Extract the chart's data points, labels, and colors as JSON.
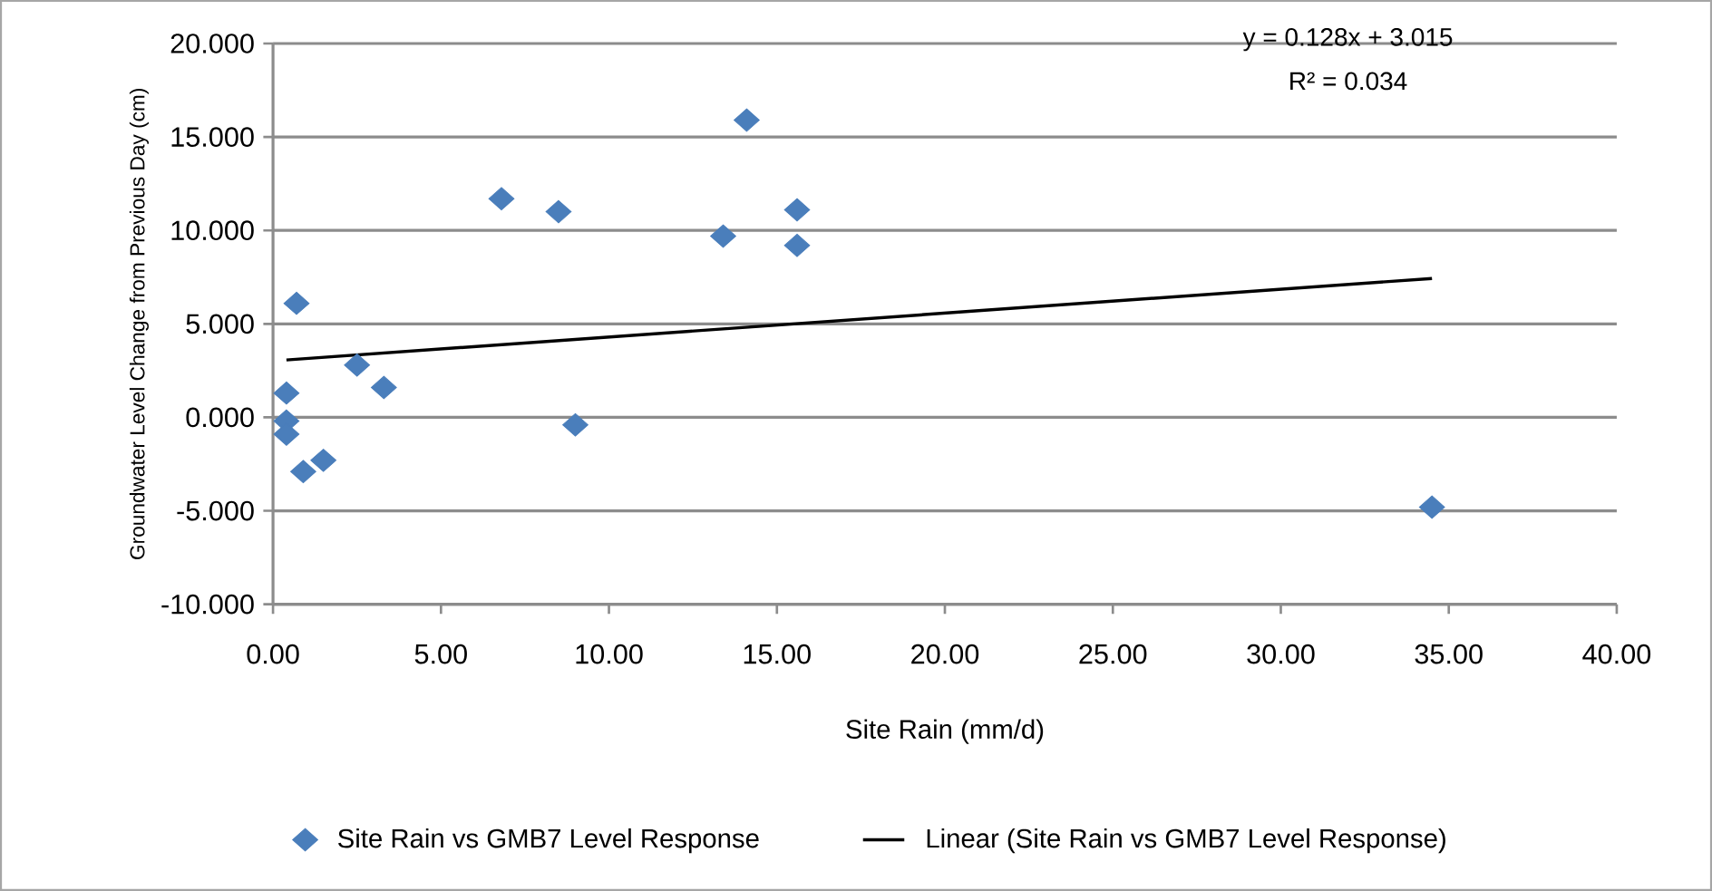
{
  "chart_data": {
    "type": "scatter",
    "xlabel": "Site Rain  (mm/d)",
    "ylabel": "Groundwater Level Change from Previous Day (cm)",
    "xlim": [
      0,
      40
    ],
    "ylim": [
      -10,
      20
    ],
    "xticks": [
      {
        "value": 0,
        "label": "0.00"
      },
      {
        "value": 5,
        "label": "5.00"
      },
      {
        "value": 10,
        "label": "10.00"
      },
      {
        "value": 15,
        "label": "15.00"
      },
      {
        "value": 20,
        "label": "20.00"
      },
      {
        "value": 25,
        "label": "25.00"
      },
      {
        "value": 30,
        "label": "30.00"
      },
      {
        "value": 35,
        "label": "35.00"
      },
      {
        "value": 40,
        "label": "40.00"
      }
    ],
    "yticks": [
      {
        "value": -10,
        "label": "-10.000"
      },
      {
        "value": -5,
        "label": "-5.000"
      },
      {
        "value": 0,
        "label": "0.000"
      },
      {
        "value": 5,
        "label": "5.000"
      },
      {
        "value": 10,
        "label": "10.000"
      },
      {
        "value": 15,
        "label": "15.000"
      },
      {
        "value": 20,
        "label": "20.000"
      }
    ],
    "grid": "y",
    "legend": "bottom",
    "annotations": [
      "y = 0.128x + 3.015",
      "R² = 0.034"
    ],
    "series": [
      {
        "name": "Site Rain vs GMB7 Level  Response",
        "marker": "diamond",
        "color": "#4a7ebb",
        "x": [
          0.7,
          0.4,
          0.4,
          0.4,
          0.9,
          1.5,
          2.5,
          3.3,
          6.8,
          8.5,
          9.0,
          13.4,
          14.1,
          15.6,
          15.6,
          34.5
        ],
        "values": [
          6.1,
          1.3,
          -0.2,
          -0.9,
          -2.9,
          -2.3,
          2.8,
          1.6,
          11.7,
          11.0,
          -0.4,
          9.7,
          15.9,
          11.1,
          9.2,
          -4.8
        ]
      },
      {
        "name": "Linear (Site Rain vs GMB7 Level  Response)",
        "type": "line",
        "marker": "none",
        "color": "#000000",
        "x": [
          0.4,
          34.5
        ],
        "values": [
          3.07,
          7.43
        ]
      }
    ]
  }
}
